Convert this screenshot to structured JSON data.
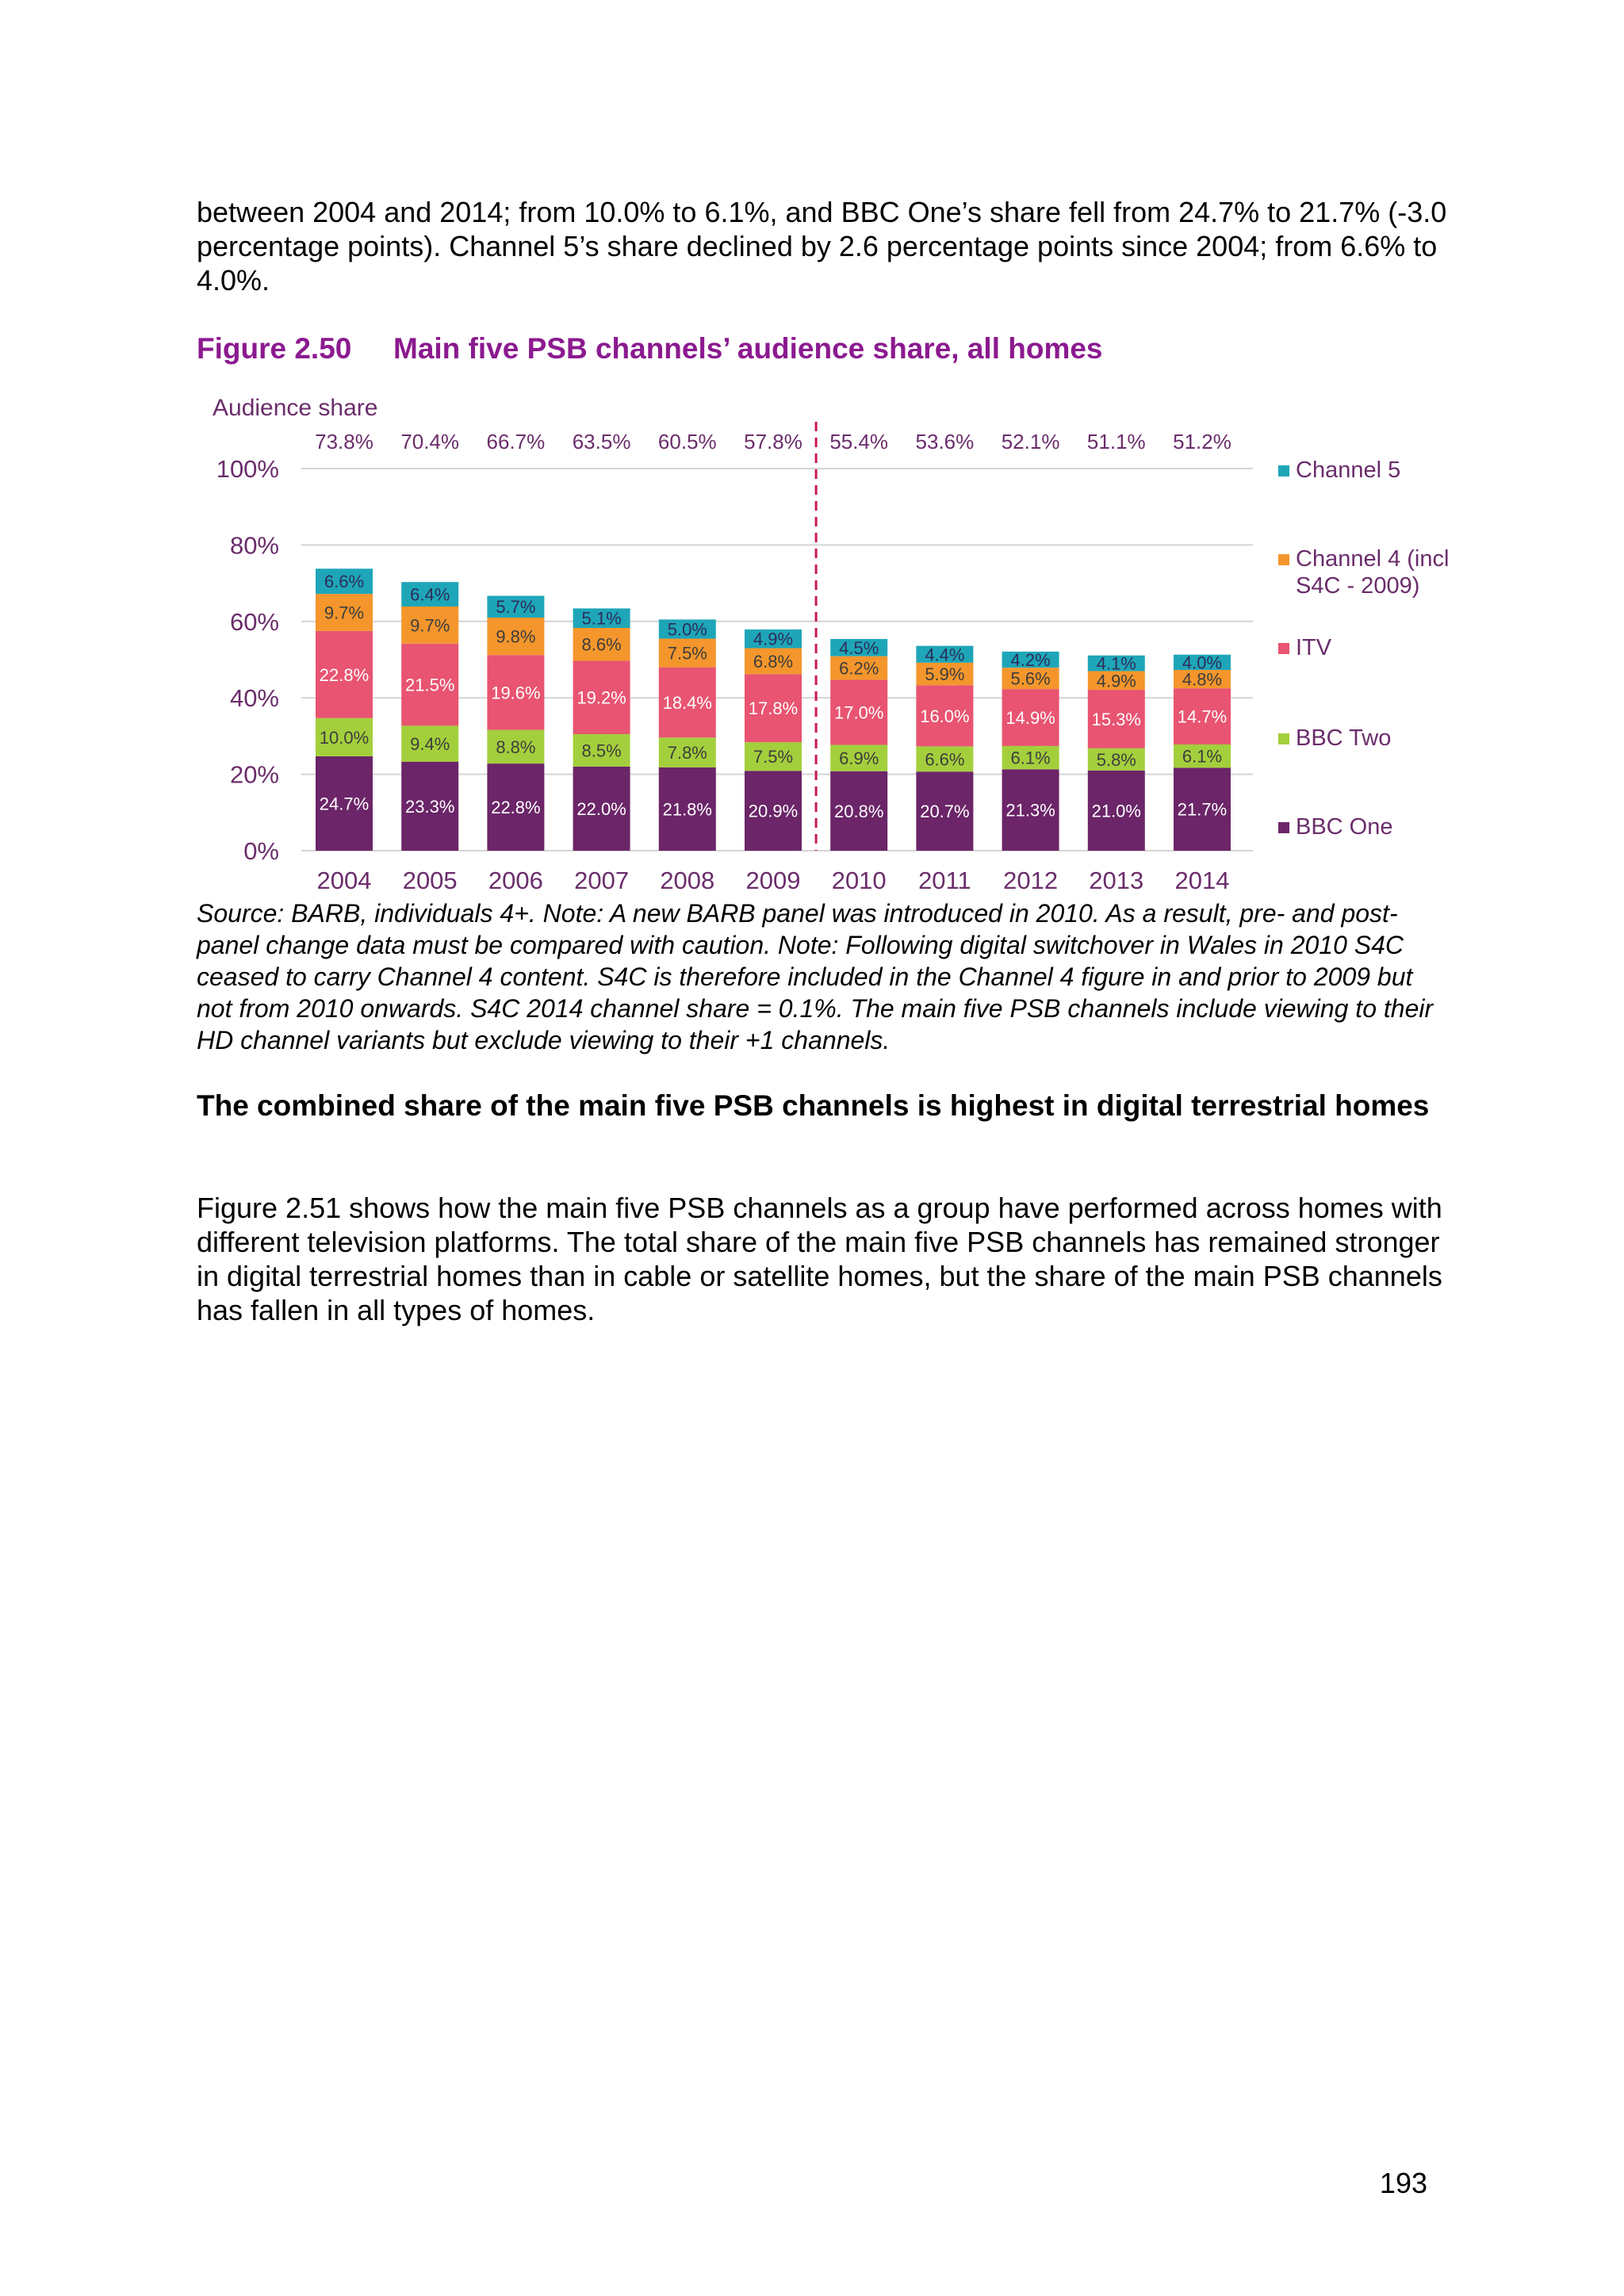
{
  "text": {
    "para1": "between 2004 and 2014; from 10.0% to 6.1%, and BBC One’s share fell from 24.7% to 21.7% (-3.0 percentage points). Channel 5’s share declined by 2.6 percentage points since 2004; from 6.6% to 4.0%.",
    "figure_number": "Figure 2.50",
    "figure_title": "Main five PSB channels’ audience share, all homes",
    "source_note": "Source: BARB, individuals 4+. Note: A new BARB panel was introduced in 2010. As a result, pre- and post-panel change data must be compared with caution. Note: Following digital switchover in Wales in 2010 S4C ceased to carry Channel 4 content. S4C is therefore included in the Channel 4 figure in and prior to 2009 but not from 2010 onwards. S4C 2014 channel share = 0.1%. The main five PSB channels include viewing to their HD channel variants but exclude viewing to their +1 channels.",
    "subheading": "The combined share of the main five PSB channels is highest in digital terrestrial homes",
    "para2": "Figure 2.51 shows how the main five PSB channels as a group have performed across homes with different television platforms. The total share of the main five PSB channels has remained stronger in digital terrestrial homes than in cable or satellite homes, but the share of the main PSB channels has fallen in all types of homes.",
    "page_number": "193"
  },
  "chart_data": {
    "type": "bar",
    "stacked": true,
    "ylabel": "Audience share",
    "ylim": [
      0,
      100
    ],
    "yticks": [
      "0%",
      "20%",
      "40%",
      "60%",
      "80%",
      "100%"
    ],
    "categories": [
      "2004",
      "2005",
      "2006",
      "2007",
      "2008",
      "2009",
      "2010",
      "2011",
      "2012",
      "2013",
      "2014"
    ],
    "totals": [
      "73.8%",
      "70.4%",
      "66.7%",
      "63.5%",
      "60.5%",
      "57.8%",
      "55.4%",
      "53.6%",
      "52.1%",
      "51.1%",
      "51.2%"
    ],
    "divider_after": "2009",
    "grid": true,
    "legend_position": "right",
    "series": [
      {
        "name": "BBC One",
        "color": "#6b2568",
        "label_color": "#ffffff",
        "values": [
          24.7,
          23.3,
          22.8,
          22.0,
          21.8,
          20.9,
          20.8,
          20.7,
          21.3,
          21.0,
          21.7
        ],
        "labels": [
          "24.7%",
          "23.3%",
          "22.8%",
          "22.0%",
          "21.8%",
          "20.9%",
          "20.8%",
          "20.7%",
          "21.3%",
          "21.0%",
          "21.7%"
        ]
      },
      {
        "name": "BBC Two",
        "color": "#a4cf3c",
        "label_color": "#3d3d3d",
        "values": [
          10.0,
          9.4,
          8.8,
          8.5,
          7.8,
          7.5,
          6.9,
          6.6,
          6.1,
          5.8,
          6.1
        ],
        "labels": [
          "10.0%",
          "9.4%",
          "8.8%",
          "8.5%",
          "7.8%",
          "7.5%",
          "6.9%",
          "6.6%",
          "6.1%",
          "5.8%",
          "6.1%"
        ]
      },
      {
        "name": "ITV",
        "color": "#e85471",
        "label_color": "#ffffff",
        "values": [
          22.8,
          21.5,
          19.6,
          19.2,
          18.4,
          17.8,
          17.0,
          16.0,
          14.9,
          15.3,
          14.7
        ],
        "labels": [
          "22.8%",
          "21.5%",
          "19.6%",
          "19.2%",
          "18.4%",
          "17.8%",
          "17.0%",
          "16.0%",
          "14.9%",
          "15.3%",
          "14.7%"
        ]
      },
      {
        "name": "Channel 4 (incl S4C - 2009)",
        "color": "#f4962c",
        "label_color": "#3d3d3d",
        "values": [
          9.7,
          9.7,
          9.8,
          8.6,
          7.5,
          6.8,
          6.2,
          5.9,
          5.6,
          4.9,
          4.8
        ],
        "labels": [
          "9.7%",
          "9.7%",
          "9.8%",
          "8.6%",
          "7.5%",
          "6.8%",
          "6.2%",
          "5.9%",
          "5.6%",
          "4.9%",
          "4.8%"
        ]
      },
      {
        "name": "Channel 5",
        "color": "#1ea6b8",
        "label_color": "#2d2d5a",
        "values": [
          6.6,
          6.4,
          5.7,
          5.1,
          5.0,
          4.9,
          4.5,
          4.4,
          4.2,
          4.1,
          4.0
        ],
        "labels": [
          "6.6%",
          "6.4%",
          "5.7%",
          "5.1%",
          "5.0%",
          "4.9%",
          "4.5%",
          "4.4%",
          "4.2%",
          "4.1%",
          "4.0%"
        ]
      }
    ],
    "legend_order": [
      "Channel 5",
      "Channel 4 (incl S4C - 2009)",
      "ITV",
      "BBC Two",
      "BBC One"
    ]
  }
}
